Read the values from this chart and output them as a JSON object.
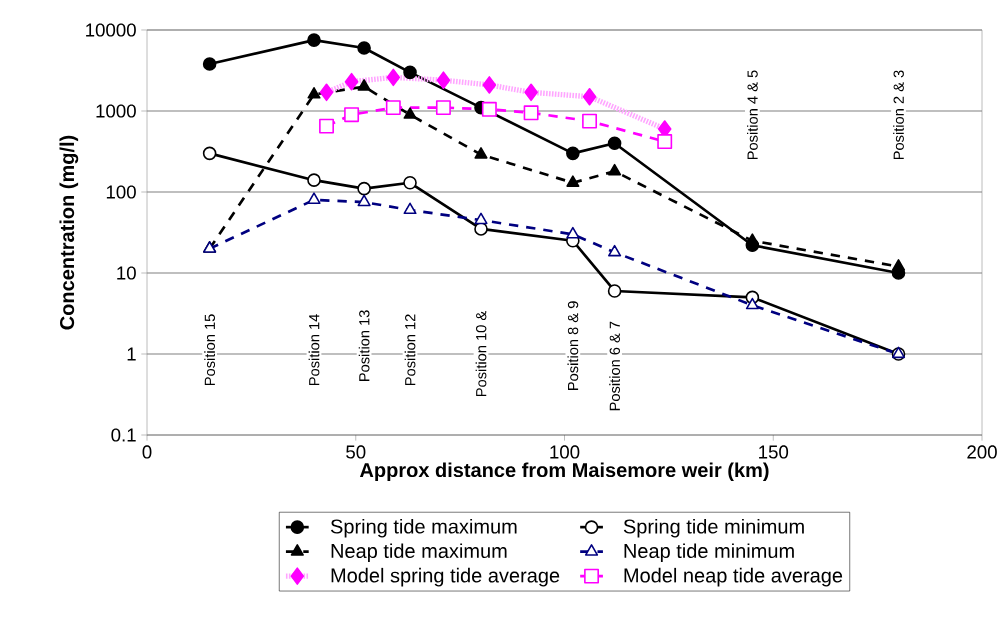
{
  "chart_data": {
    "type": "line",
    "xlabel": "Approx distance from Maisemore weir (km)",
    "ylabel": "Concentration (mg/l)",
    "log": "y",
    "xlim": [
      0,
      200
    ],
    "xticks": [
      0,
      50,
      100,
      150,
      200
    ],
    "ylim": [
      0.1,
      10000
    ],
    "yticks": [
      0.1,
      1,
      10,
      100,
      1000,
      10000
    ],
    "grid": "y",
    "legend": "bottom",
    "series": [
      {
        "name": "Spring tide maximum",
        "color": "#000000",
        "marker": "circle",
        "line_style": "solid",
        "x": [
          15,
          40,
          52,
          63,
          80,
          102,
          112,
          145,
          180
        ],
        "values": [
          3800,
          7500,
          6000,
          3000,
          1100,
          300,
          400,
          22,
          10
        ]
      },
      {
        "name": "Spring tide minimum",
        "color": "#000000",
        "marker": "circle",
        "line_style": "solid",
        "x": [
          15,
          40,
          52,
          63,
          80,
          102,
          112,
          145,
          180
        ],
        "values": [
          300,
          140,
          110,
          130,
          35,
          25,
          6,
          5,
          1
        ]
      },
      {
        "name": "Neap tide maximum",
        "color": "#000000",
        "marker": "triangle",
        "line_style": "dashed",
        "x": [
          15,
          40,
          52,
          63,
          80,
          102,
          112,
          145,
          180
        ],
        "values": [
          20,
          1600,
          2000,
          900,
          290,
          130,
          180,
          25,
          12
        ]
      },
      {
        "name": "Neap tide minimum",
        "color": "#000080",
        "marker": "triangle",
        "line_style": "dashed",
        "x": [
          15,
          40,
          52,
          63,
          80,
          102,
          112,
          145,
          180
        ],
        "values": [
          20,
          80,
          75,
          60,
          45,
          30,
          18,
          4,
          1
        ]
      },
      {
        "name": "Model spring tide average",
        "color": "#ff00ff",
        "marker": "diamond",
        "line_style": "dotted",
        "x": [
          43,
          49,
          59,
          71,
          82,
          92,
          106,
          124
        ],
        "values": [
          1700,
          2300,
          2600,
          2400,
          2100,
          1700,
          1500,
          600
        ]
      },
      {
        "name": "Model neap tide average",
        "color": "#ff00ff",
        "marker": "square",
        "line_style": "dashed",
        "x": [
          43,
          49,
          59,
          71,
          82,
          92,
          106,
          124
        ],
        "values": [
          650,
          900,
          1100,
          1100,
          1050,
          950,
          750,
          420
        ]
      }
    ],
    "annotations": [
      "Position 15",
      "Position 14",
      "Position 13",
      "Position 12",
      "Position 10 &",
      "Position 8 & 9",
      "Position 6 & 7",
      "Position 4 & 5",
      "Position 2 & 3"
    ]
  }
}
